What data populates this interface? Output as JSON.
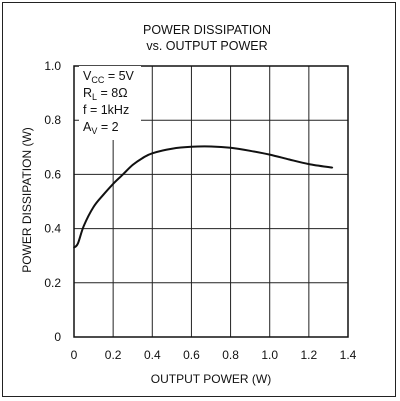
{
  "chart_data": {
    "type": "line",
    "title": "POWER DISSIPATION",
    "subtitle": "vs. OUTPUT POWER",
    "xlabel": "OUTPUT POWER (W)",
    "ylabel": "POWER DISSIPATION (W)",
    "xlim": [
      0,
      1.4
    ],
    "ylim": [
      0,
      1.0
    ],
    "x_ticks": [
      "0",
      "0.2",
      "0.4",
      "0.6",
      "0.8",
      "1.0",
      "1.2",
      "1.4"
    ],
    "y_ticks": [
      "0",
      "0.2",
      "0.4",
      "0.6",
      "0.8",
      "1.0"
    ],
    "grid": true,
    "line_color": "#111111",
    "conditions": [
      {
        "main": "V",
        "sub": "CC",
        "rest": " = 5V"
      },
      {
        "main": "R",
        "sub": "L",
        "rest": " = 8Ω"
      },
      {
        "main": "f = 1kHz",
        "sub": "",
        "rest": ""
      },
      {
        "main": "A",
        "sub": "V",
        "rest": " = 2"
      }
    ],
    "series": [
      {
        "x": [
          0.0,
          0.02,
          0.05,
          0.1,
          0.15,
          0.2,
          0.25,
          0.3,
          0.35,
          0.4,
          0.5,
          0.6,
          0.7,
          0.8,
          0.9,
          1.0,
          1.1,
          1.2,
          1.32
        ],
        "y": [
          0.33,
          0.345,
          0.41,
          0.48,
          0.525,
          0.565,
          0.6,
          0.635,
          0.66,
          0.678,
          0.695,
          0.702,
          0.703,
          0.698,
          0.687,
          0.673,
          0.655,
          0.638,
          0.625
        ]
      }
    ]
  }
}
